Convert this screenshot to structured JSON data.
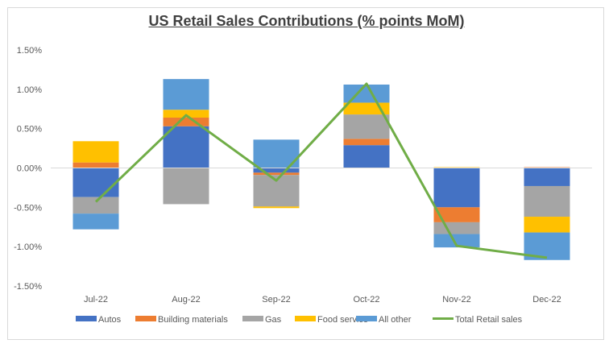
{
  "chart_data": {
    "type": "bar",
    "stacked": true,
    "title": "US Retail Sales Contributions (% points MoM)",
    "categories": [
      "Jul-22",
      "Aug-22",
      "Sep-22",
      "Oct-22",
      "Nov-22",
      "Dec-22"
    ],
    "series": [
      {
        "name": "Autos",
        "type": "bar",
        "color": "#4472c4",
        "values": [
          -0.37,
          0.53,
          -0.06,
          0.29,
          -0.5,
          -0.23
        ]
      },
      {
        "name": "Building materials",
        "type": "bar",
        "color": "#ed7d31",
        "values": [
          0.07,
          0.11,
          -0.03,
          0.08,
          -0.19,
          0.01
        ]
      },
      {
        "name": "Gas",
        "type": "bar",
        "color": "#a5a5a5",
        "values": [
          -0.21,
          -0.46,
          -0.4,
          0.31,
          -0.15,
          -0.39
        ]
      },
      {
        "name": "Food service",
        "type": "bar",
        "color": "#ffc000",
        "values": [
          0.27,
          0.1,
          -0.02,
          0.15,
          0.01,
          -0.2
        ]
      },
      {
        "name": "All other",
        "type": "bar",
        "color": "#5b9bd5",
        "values": [
          -0.2,
          0.39,
          0.36,
          0.23,
          -0.17,
          -0.35
        ]
      },
      {
        "name": "Total Retail sales",
        "type": "line",
        "color": "#70ad47",
        "values": [
          -0.43,
          0.67,
          -0.16,
          1.07,
          -0.99,
          -1.14
        ]
      }
    ],
    "yticks": [
      "1.50%",
      "1.00%",
      "0.50%",
      "0.00%",
      "-0.50%",
      "-1.00%",
      "-1.50%"
    ],
    "ylim": [
      -1.5,
      1.5
    ],
    "ystep": 0.5,
    "grid": false,
    "legend_position": "bottom"
  }
}
